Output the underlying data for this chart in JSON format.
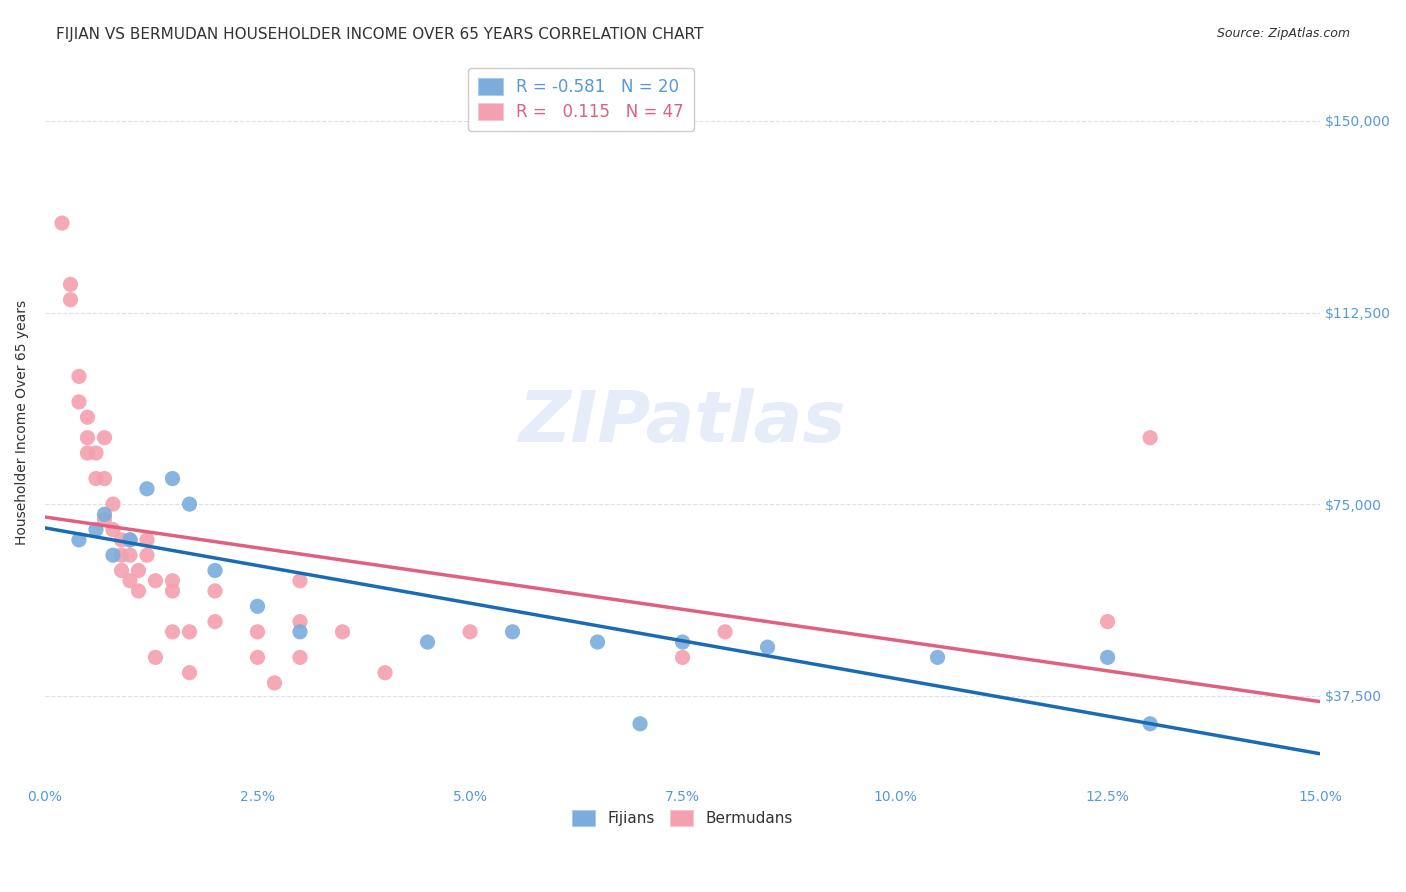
{
  "title": "FIJIAN VS BERMUDAN HOUSEHOLDER INCOME OVER 65 YEARS CORRELATION CHART",
  "source": "Source: ZipAtlas.com",
  "ylabel": "Householder Income Over 65 years",
  "xlabel_ticks": [
    "0.0%",
    "2.5%",
    "5.0%",
    "7.5%",
    "10.0%",
    "12.5%",
    "15.0%"
  ],
  "xlabel_vals": [
    0.0,
    2.5,
    5.0,
    7.5,
    10.0,
    12.5,
    15.0
  ],
  "ylabel_ticks": [
    37500,
    75000,
    112500,
    150000
  ],
  "ylabel_labels": [
    "$37,500",
    "$75,000",
    "$112,500",
    "$150,000"
  ],
  "xlim": [
    0.0,
    15.0
  ],
  "ylim": [
    20000,
    162000
  ],
  "fijian_color": "#7aaddc",
  "bermudan_color": "#f4a0b0",
  "fijian_line_color": "#1a6bb5",
  "bermudan_line_color": "#e06080",
  "axis_label_color": "#5599dd",
  "background_color": "#ffffff",
  "grid_color": "#ddddee",
  "fijian_x": [
    0.4,
    0.6,
    0.7,
    0.8,
    1.0,
    1.2,
    1.5,
    1.7,
    2.0,
    2.5,
    3.0,
    4.5,
    5.5,
    6.5,
    7.0,
    7.5,
    8.5,
    10.5,
    12.5,
    13.0
  ],
  "fijian_y": [
    68000,
    70000,
    73000,
    65000,
    68000,
    78000,
    80000,
    75000,
    62000,
    55000,
    50000,
    48000,
    50000,
    48000,
    32000,
    48000,
    47000,
    45000,
    45000,
    32000
  ],
  "bermudan_x": [
    0.2,
    0.3,
    0.3,
    0.4,
    0.4,
    0.5,
    0.5,
    0.5,
    0.6,
    0.6,
    0.7,
    0.7,
    0.7,
    0.8,
    0.8,
    0.9,
    0.9,
    0.9,
    1.0,
    1.0,
    1.0,
    1.1,
    1.1,
    1.2,
    1.2,
    1.3,
    1.3,
    1.5,
    1.5,
    1.5,
    1.7,
    1.7,
    2.0,
    2.0,
    2.5,
    2.5,
    2.7,
    3.0,
    3.0,
    3.0,
    3.5,
    4.0,
    5.0,
    7.5,
    8.0,
    12.5,
    13.0
  ],
  "bermudan_y": [
    130000,
    115000,
    118000,
    95000,
    100000,
    92000,
    88000,
    85000,
    80000,
    85000,
    88000,
    80000,
    72000,
    75000,
    70000,
    68000,
    65000,
    62000,
    68000,
    65000,
    60000,
    62000,
    58000,
    68000,
    65000,
    60000,
    45000,
    60000,
    58000,
    50000,
    50000,
    42000,
    58000,
    52000,
    50000,
    45000,
    40000,
    60000,
    52000,
    45000,
    50000,
    42000,
    50000,
    45000,
    50000,
    52000,
    88000
  ],
  "watermark": "ZIPatlas",
  "title_fontsize": 11,
  "axis_tick_fontsize": 10,
  "label_fontsize": 10
}
